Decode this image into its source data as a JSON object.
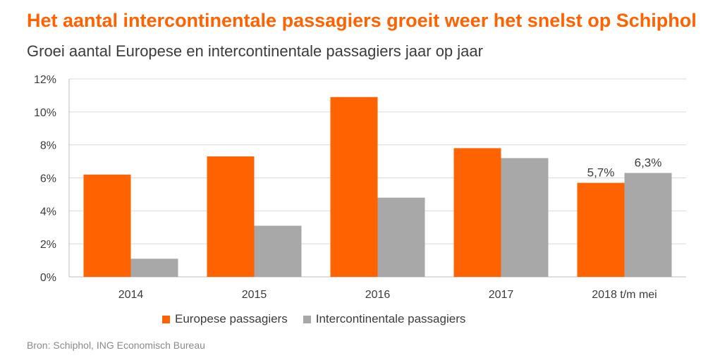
{
  "chart_data": {
    "type": "bar",
    "title": "Het aantal intercontinentale passagiers groeit weer het snelst op Schiphol",
    "subtitle": "Groei aantal Europese en intercontinentale passagiers jaar op jaar",
    "categories": [
      "2014",
      "2015",
      "2016",
      "2017",
      "2018 t/m mei"
    ],
    "series": [
      {
        "name": "Europese passagiers",
        "color": "#ff6200",
        "values": [
          6.2,
          7.3,
          10.9,
          7.8,
          5.7
        ]
      },
      {
        "name": "Intercontinentale passagiers",
        "color": "#a8a8a8",
        "values": [
          1.1,
          3.1,
          4.8,
          7.2,
          6.3
        ]
      }
    ],
    "data_labels": [
      {
        "series": 0,
        "index": 4,
        "text": "5,7%"
      },
      {
        "series": 1,
        "index": 4,
        "text": "6,3%"
      }
    ],
    "yticks": [
      "0%",
      "2%",
      "4%",
      "6%",
      "8%",
      "10%",
      "12%"
    ],
    "ylim": [
      0,
      12
    ],
    "grid": true,
    "legend_position": "bottom",
    "xlabel": "",
    "ylabel": ""
  },
  "source": "Bron: Schiphol, ING Economisch Bureau"
}
